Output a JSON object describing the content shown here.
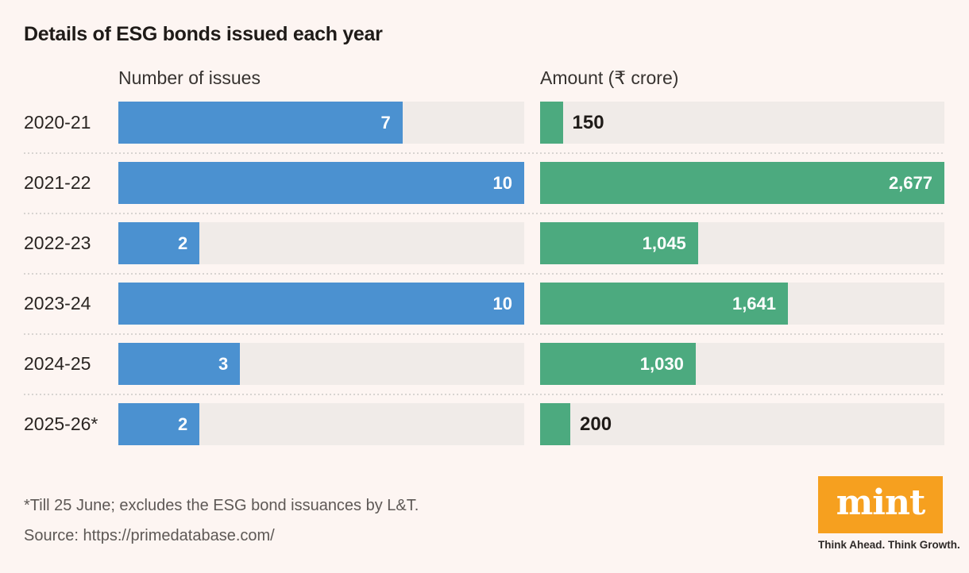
{
  "title": "Details of ESG bonds issued each year",
  "colors": {
    "background": "#fdf5f2",
    "track": "#f0ebe8",
    "bar_blue": "#4b91d0",
    "bar_green": "#4caa7f",
    "separator_dots": "#d8d4d1",
    "mint_orange": "#f6a01f",
    "ink": "#1f1b18"
  },
  "chart_data": {
    "type": "bar",
    "orientation": "horizontal",
    "title": "Details of ESG bonds issued each year",
    "categories": [
      "2020-21",
      "2021-22",
      "2022-23",
      "2023-24",
      "2024-25",
      "2025-26*"
    ],
    "series": [
      {
        "name": "Number of issues",
        "values": [
          7,
          10,
          2,
          10,
          3,
          2
        ],
        "labels": [
          "7",
          "10",
          "2",
          "10",
          "3",
          "2"
        ],
        "max": 10,
        "color": "#4b91d0"
      },
      {
        "name": "Amount (₹ crore)",
        "values": [
          150,
          2677,
          1045,
          1641,
          1030,
          200
        ],
        "labels": [
          "150",
          "2,677",
          "1,045",
          "1,641",
          "1,030",
          "200"
        ],
        "max": 2677,
        "color": "#4caa7f"
      }
    ],
    "grid": false,
    "legend_position": "column-headers",
    "label_placement_rule": "inside-right when bar >= 12% of track, else outside-right in dark text"
  },
  "footer": {
    "footnote": "*Till 25 June; excludes the ESG bond issuances by L&T.",
    "source": "Source: https://primedatabase.com/"
  },
  "branding": {
    "logo_text": "mint",
    "tagline": "Think Ahead. Think Growth."
  }
}
